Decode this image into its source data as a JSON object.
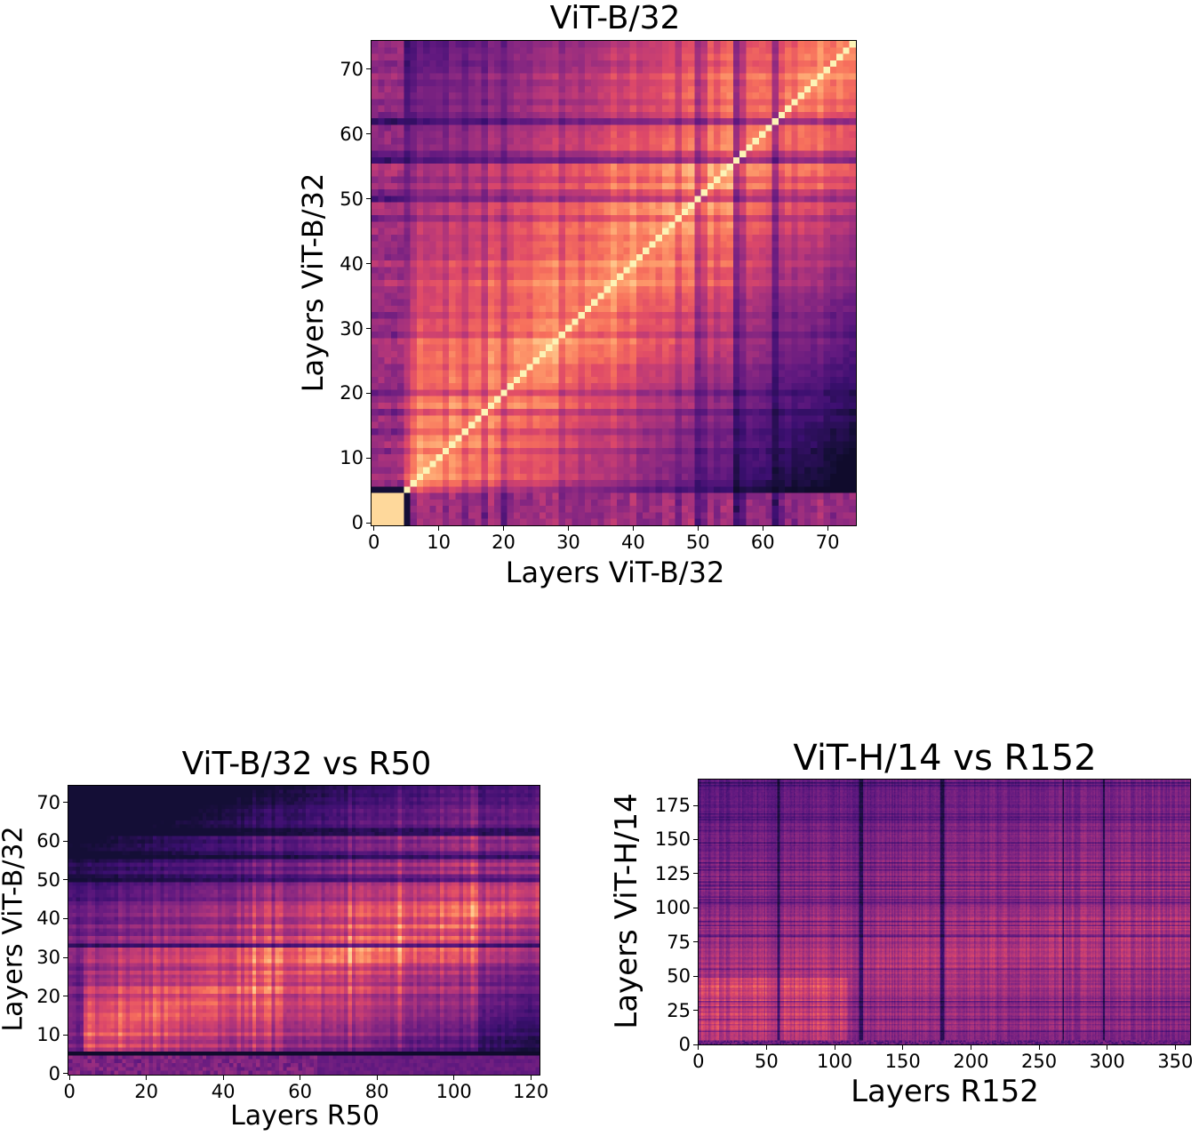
{
  "chart_data": [
    {
      "type": "heatmap",
      "title": "ViT-B/32",
      "xlabel": "Layers ViT-B/32",
      "ylabel": "Layers ViT-B/32",
      "colormap": "magma",
      "n_cols": 75,
      "n_rows": 75,
      "xlim": [
        0,
        74
      ],
      "ylim": [
        0,
        74
      ],
      "xticks": [
        0,
        10,
        20,
        30,
        40,
        50,
        60,
        70
      ],
      "yticks": [
        0,
        10,
        20,
        30,
        40,
        50,
        60,
        70
      ],
      "grid": false,
      "pattern": "symmetric similarity, bright diagonal"
    },
    {
      "type": "heatmap",
      "title": "ViT-B/32 vs R50",
      "xlabel": "Layers R50",
      "ylabel": "Layers ViT-B/32",
      "colormap": "magma",
      "n_cols": 123,
      "n_rows": 75,
      "xlim": [
        0,
        122
      ],
      "ylim": [
        0,
        74
      ],
      "xticks": [
        0,
        20,
        40,
        60,
        80,
        100,
        120
      ],
      "yticks": [
        0,
        10,
        20,
        30,
        40,
        50,
        60,
        70
      ],
      "grid": false
    },
    {
      "type": "heatmap",
      "title": "ViT-H/14 vs R152",
      "xlabel": "Layers R152",
      "ylabel": "Layers ViT-H/14",
      "colormap": "magma",
      "n_cols": 362,
      "n_rows": 195,
      "xlim": [
        0,
        361
      ],
      "ylim": [
        0,
        194
      ],
      "xticks": [
        0,
        50,
        100,
        150,
        200,
        250,
        300,
        350
      ],
      "yticks": [
        0,
        25,
        50,
        75,
        100,
        125,
        150,
        175
      ],
      "grid": false
    }
  ]
}
